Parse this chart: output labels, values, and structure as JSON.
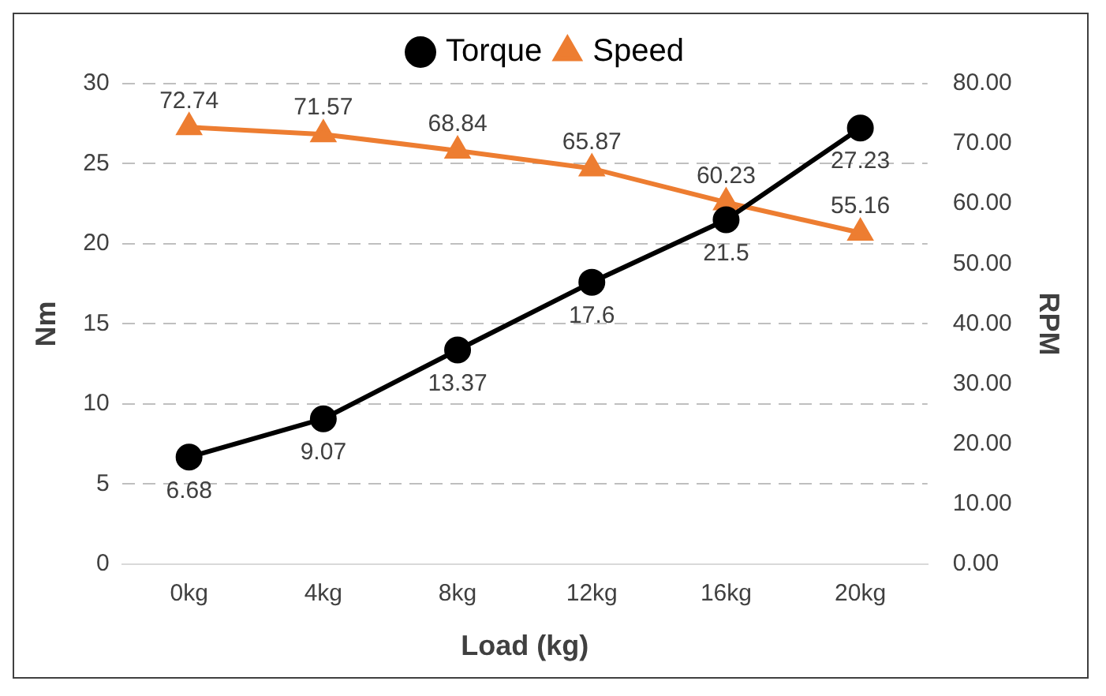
{
  "chart_data": {
    "type": "line",
    "xlabel": "Load (kg)",
    "ylabel": "Nm",
    "y2label": "RPM",
    "categories": [
      "0kg",
      "4kg",
      "8kg",
      "12kg",
      "16kg",
      "20kg"
    ],
    "series": [
      {
        "name": "Torque",
        "color": "#000000",
        "marker": "circle",
        "values": [
          6.68,
          9.07,
          13.37,
          17.6,
          21.5,
          27.23
        ]
      },
      {
        "name": "Speed",
        "color": "#ed7d31",
        "marker": "triangle",
        "axis": "y2",
        "values": [
          72.74,
          71.57,
          68.84,
          65.87,
          60.23,
          55.16
        ]
      }
    ],
    "ylim": [
      0,
      30
    ],
    "yticks": [
      0,
      5,
      10,
      15,
      20,
      25,
      30
    ],
    "y2lim": [
      0,
      80
    ],
    "y2ticks": [
      {
        "value": 0,
        "label": "0.00"
      },
      {
        "value": 10,
        "label": "10.00"
      },
      {
        "value": 20,
        "label": "20.00"
      },
      {
        "value": 30,
        "label": "30.00"
      },
      {
        "value": 40,
        "label": "40.00"
      },
      {
        "value": 50,
        "label": "50.00"
      },
      {
        "value": 60,
        "label": "60.00"
      },
      {
        "value": 70,
        "label": "70.00"
      },
      {
        "value": 80,
        "label": "80.00"
      }
    ],
    "grid": "y",
    "legend": "top",
    "data_labels": true,
    "line_style": "solid"
  }
}
